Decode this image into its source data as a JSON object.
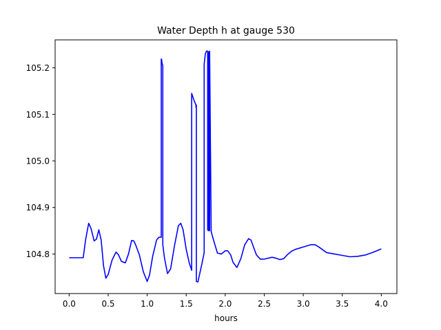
{
  "chart_data": {
    "type": "line",
    "title": "Water Depth h at gauge 530",
    "xlabel": "hours",
    "ylabel": "",
    "xlim": [
      -0.18,
      4.2
    ],
    "ylim": [
      104.715,
      105.26
    ],
    "xticks": [
      0.0,
      0.5,
      1.0,
      1.5,
      2.0,
      2.5,
      3.0,
      3.5,
      4.0
    ],
    "xtick_labels": [
      "0.0",
      "0.5",
      "1.0",
      "1.5",
      "2.0",
      "2.5",
      "3.0",
      "3.5",
      "4.0"
    ],
    "yticks": [
      104.8,
      104.9,
      105.0,
      105.1,
      105.2
    ],
    "ytick_labels": [
      "104.8",
      "104.9",
      "105.0",
      "105.1",
      "105.2"
    ],
    "grid": false,
    "series": [
      {
        "color": "#0000ff",
        "x": [
          0.0,
          0.1,
          0.18,
          0.21,
          0.25,
          0.28,
          0.32,
          0.35,
          0.38,
          0.41,
          0.44,
          0.47,
          0.5,
          0.55,
          0.6,
          0.63,
          0.67,
          0.72,
          0.76,
          0.8,
          0.83,
          0.86,
          0.9,
          0.95,
          1.0,
          1.03,
          1.07,
          1.12,
          1.15,
          1.18,
          1.18,
          1.185,
          1.19,
          1.2,
          1.2,
          1.22,
          1.26,
          1.3,
          1.35,
          1.4,
          1.43,
          1.46,
          1.5,
          1.54,
          1.57,
          1.57,
          1.6,
          1.625,
          1.625,
          1.63,
          1.63,
          1.65,
          1.7,
          1.73,
          1.73,
          1.745,
          1.76,
          1.775,
          1.775,
          1.785,
          1.785,
          1.795,
          1.795,
          1.8,
          1.8,
          1.82,
          1.85,
          1.9,
          1.95,
          2.0,
          2.03,
          2.07,
          2.1,
          2.15,
          2.2,
          2.25,
          2.3,
          2.33,
          2.36,
          2.4,
          2.45,
          2.5,
          2.6,
          2.65,
          2.7,
          2.75,
          2.8,
          2.85,
          2.9,
          3.0,
          3.1,
          3.15,
          3.2,
          3.3,
          3.4,
          3.5,
          3.6,
          3.7,
          3.8,
          3.9,
          4.0
        ],
        "y": [
          104.792,
          104.792,
          104.792,
          104.83,
          104.866,
          104.855,
          104.828,
          104.832,
          104.852,
          104.83,
          104.775,
          104.748,
          104.756,
          104.787,
          104.804,
          104.799,
          104.784,
          104.781,
          104.8,
          104.829,
          104.828,
          104.816,
          104.798,
          104.762,
          104.741,
          104.755,
          104.795,
          104.83,
          104.836,
          104.836,
          105.219,
          105.218,
          105.21,
          105.205,
          104.82,
          104.793,
          104.758,
          104.768,
          104.818,
          104.861,
          104.866,
          104.852,
          104.81,
          104.78,
          104.765,
          105.145,
          105.13,
          105.12,
          105.115,
          105.12,
          104.741,
          104.74,
          104.778,
          104.803,
          105.208,
          105.23,
          105.236,
          105.236,
          104.852,
          104.85,
          105.234,
          105.234,
          104.852,
          104.85,
          105.236,
          104.848,
          104.83,
          104.802,
          104.8,
          104.807,
          104.807,
          104.798,
          104.782,
          104.771,
          104.79,
          104.82,
          104.833,
          104.83,
          104.816,
          104.798,
          104.789,
          104.789,
          104.793,
          104.791,
          104.788,
          104.79,
          104.799,
          104.806,
          104.81,
          104.815,
          104.82,
          104.82,
          104.815,
          104.803,
          104.8,
          104.797,
          104.794,
          104.795,
          104.798,
          104.804,
          104.811
        ]
      }
    ]
  }
}
